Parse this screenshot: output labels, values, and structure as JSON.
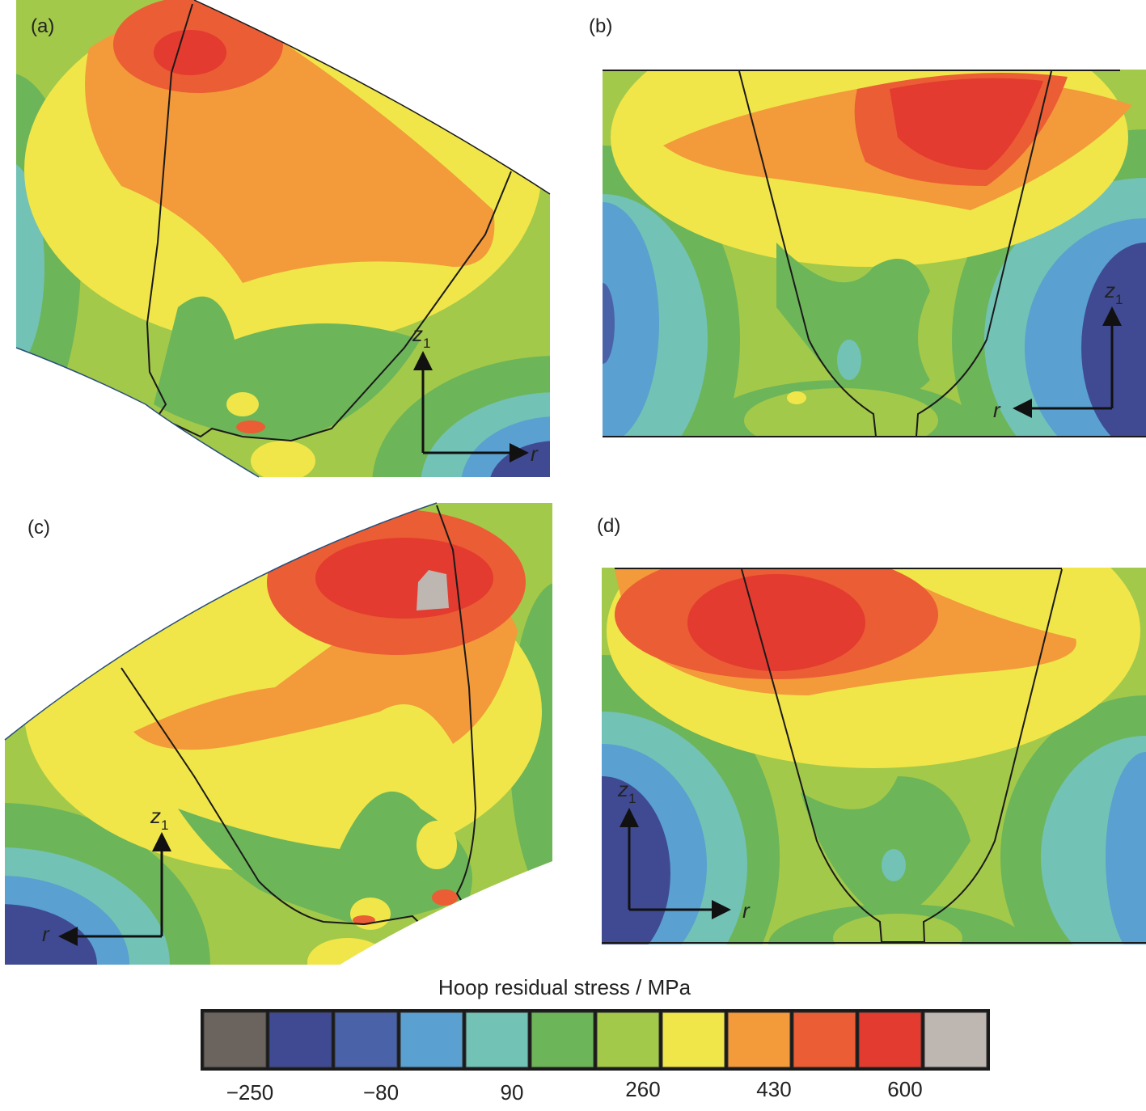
{
  "panels": [
    {
      "label": "(a)",
      "z": "z",
      "z_sub": "1",
      "r": "r"
    },
    {
      "label": "(b)",
      "z": "z",
      "z_sub": "1",
      "r": "r"
    },
    {
      "label": "(c)",
      "z": "z",
      "z_sub": "1",
      "r": "r"
    },
    {
      "label": "(d)",
      "z": "z",
      "z_sub": "1",
      "r": "r"
    }
  ],
  "colorbar": {
    "title": "Hoop residual stress / MPa",
    "colors": [
      "#6b635e",
      "#3f4a93",
      "#4a62a8",
      "#5aa0d0",
      "#72c2b6",
      "#6db559",
      "#a3c94a",
      "#f0e64a",
      "#f39a3a",
      "#eb5d34",
      "#e33b2f",
      "#bdb6b1"
    ],
    "ticks": [
      {
        "value": -250,
        "label": "−250"
      },
      {
        "value": -80,
        "label": "−80"
      },
      90,
      260,
      430,
      600
    ]
  }
}
